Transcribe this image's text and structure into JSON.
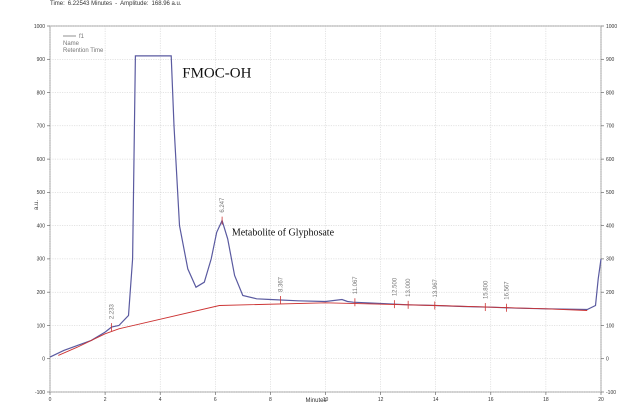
{
  "status_bar": {
    "time_label": "Time:",
    "time_value": "6.22543 Minutes",
    "sep": "-",
    "amp_label": "Amplitude:",
    "amp_value": "168.96 a.u."
  },
  "legend": {
    "series": "f1",
    "rows": [
      "Name",
      "Retention Time"
    ]
  },
  "chart_data": {
    "type": "line",
    "xlabel": "Minutes",
    "ylabel": "a.u.",
    "xlim": [
      0,
      20
    ],
    "ylim": [
      -100,
      1000
    ],
    "x_ticks": [
      0,
      2,
      4,
      6,
      8,
      10,
      12,
      14,
      16,
      18,
      20
    ],
    "y_ticks": [
      -100,
      0,
      100,
      200,
      300,
      400,
      500,
      600,
      700,
      800,
      900,
      1000
    ],
    "series": [
      {
        "color": "#5a5aa0",
        "x": [
          0,
          0.5,
          1,
          1.5,
          2,
          2.233,
          2.5,
          2.85,
          3.0,
          3.1,
          4.4,
          4.5,
          4.7,
          5.0,
          5.3,
          5.6,
          5.85,
          6.05,
          6.247,
          6.45,
          6.7,
          7.0,
          7.5,
          8,
          9,
          10,
          10.6,
          10.8,
          11,
          12,
          13,
          14,
          15,
          16,
          17,
          18,
          19.5,
          19.8,
          19.9,
          20
        ],
        "y": [
          5,
          25,
          40,
          55,
          80,
          95,
          100,
          130,
          300,
          910,
          910,
          700,
          400,
          270,
          215,
          230,
          300,
          380,
          415,
          360,
          250,
          190,
          180,
          178,
          174,
          172,
          178,
          172,
          170,
          166,
          162,
          160,
          157,
          155,
          152,
          150,
          148,
          160,
          240,
          300
        ]
      },
      {
        "color": "#cc3333",
        "x": [
          0.3,
          1,
          2,
          2.5,
          6.15,
          10,
          14,
          18,
          19.5
        ],
        "y": [
          10,
          35,
          75,
          90,
          160,
          168,
          160,
          150,
          145
        ]
      }
    ],
    "peaks": [
      {
        "x": 2.233,
        "label": "2.233"
      },
      {
        "x": 6.247,
        "label": "6.247"
      },
      {
        "x": 8.367,
        "label": "8.367"
      },
      {
        "x": 11.067,
        "label": "11.067"
      },
      {
        "x": 12.5,
        "label": "12.500"
      },
      {
        "x": 13.0,
        "label": "13.000"
      },
      {
        "x": 13.967,
        "label": "13.967"
      },
      {
        "x": 15.8,
        "label": "15.800"
      },
      {
        "x": 16.567,
        "label": "16.567"
      }
    ],
    "annotations": [
      {
        "text": "FMOC-OH",
        "x": 4.8,
        "y": 845
      },
      {
        "text": "Metabolite of Glyphosate",
        "x": 6.6,
        "y": 370
      }
    ]
  }
}
